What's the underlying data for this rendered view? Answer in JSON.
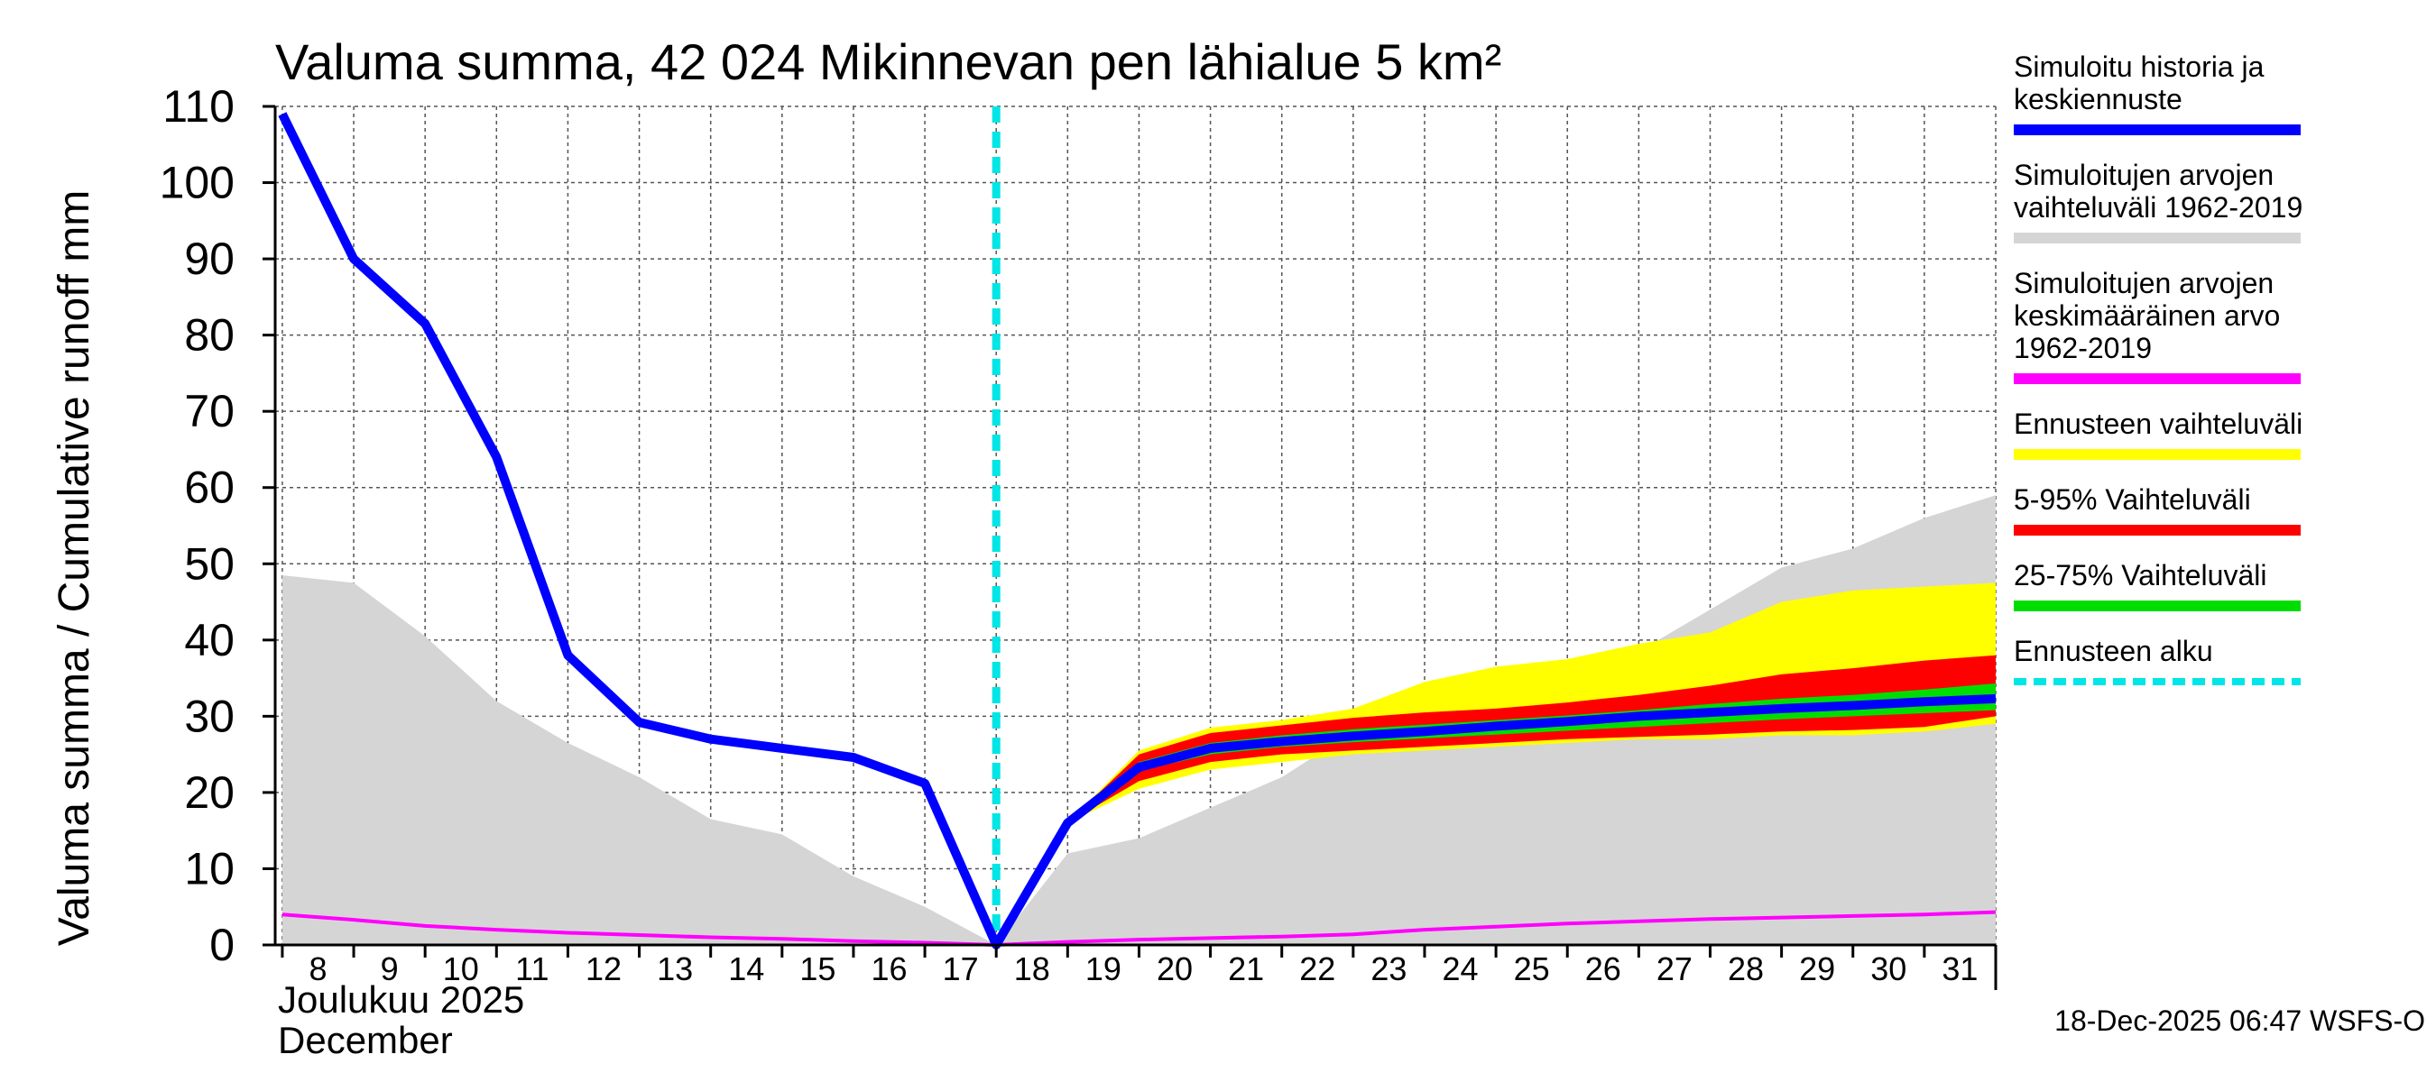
{
  "chart_data": {
    "type": "area",
    "title": "Valuma summa, 42 024 Mikinnevan pen lähialue 5 km²",
    "ylabel": "Valuma summa / Cumulative runoff    mm",
    "xlabel_line1": "Joulukuu  2025",
    "xlabel_line2": "December",
    "ylim": [
      0,
      110
    ],
    "xlim": [
      7.9,
      32
    ],
    "yticks": [
      0,
      10,
      20,
      30,
      40,
      50,
      60,
      70,
      80,
      90,
      100,
      110
    ],
    "ytick_labels": [
      "0",
      "10",
      "20",
      "30",
      "40",
      "50",
      "60",
      "70",
      "80",
      "90",
      "100",
      "110"
    ],
    "x_grid_days": [
      8,
      9,
      10,
      11,
      12,
      13,
      14,
      15,
      16,
      17,
      18,
      19,
      20,
      21,
      22,
      23,
      24,
      25,
      26,
      27,
      28,
      29,
      30,
      31,
      32
    ],
    "xtick_labels": [
      "8",
      "9",
      "10",
      "11",
      "12",
      "13",
      "14",
      "15",
      "16",
      "17",
      "18",
      "19",
      "20",
      "21",
      "22",
      "23",
      "24",
      "25",
      "26",
      "27",
      "28",
      "29",
      "30",
      "31"
    ],
    "forecast_start": 18,
    "series": [
      {
        "name": "Simuloitujen arvojen vaihteluväli 1962-2019",
        "color": "#d5d5d5",
        "x": [
          8,
          9,
          10,
          11,
          12,
          13,
          14,
          15,
          16,
          17,
          18,
          19,
          20,
          21,
          22,
          23,
          24,
          25,
          26,
          27,
          28,
          29,
          30,
          31,
          32
        ],
        "upper": [
          48.5,
          47.5,
          40.5,
          32,
          26.5,
          22,
          16.5,
          14.5,
          9,
          5,
          0,
          12,
          14,
          18,
          22,
          28,
          33.5,
          36,
          37,
          38.5,
          44,
          49.5,
          52,
          56,
          59
        ],
        "lower": [
          0,
          0,
          0,
          0,
          0,
          0,
          0,
          0,
          0,
          0,
          0,
          0,
          0,
          0,
          0,
          0,
          0,
          0,
          0,
          0,
          0,
          0,
          0,
          0,
          0
        ]
      },
      {
        "name": "Ennusteen vaihteluväli",
        "color": "#ffff00",
        "x": [
          19,
          20,
          21,
          22,
          23,
          24,
          25,
          26,
          27,
          28,
          29,
          30,
          31,
          32
        ],
        "upper": [
          16,
          25.5,
          28.5,
          29.5,
          31,
          34.5,
          36.5,
          37.5,
          39.5,
          41,
          45,
          46.5,
          47,
          47.5
        ],
        "lower": [
          16,
          20.5,
          23,
          24,
          25,
          25.5,
          26,
          26.5,
          27,
          27,
          27.5,
          27.5,
          28,
          29
        ]
      },
      {
        "name": "5-95% Vaihteluväli",
        "color": "#ff0000",
        "x": [
          19,
          20,
          21,
          22,
          23,
          24,
          25,
          26,
          27,
          28,
          29,
          30,
          31,
          32
        ],
        "upper": [
          16,
          25,
          27.8,
          28.8,
          29.8,
          30.5,
          31,
          31.8,
          32.8,
          34,
          35.5,
          36.3,
          37.3,
          38
        ],
        "lower": [
          16,
          21.5,
          24,
          25,
          25.5,
          26,
          26.5,
          27,
          27.3,
          27.6,
          28,
          28.2,
          28.6,
          30
        ]
      },
      {
        "name": "25-75% Vaihteluväli",
        "color": "#00dd00",
        "x": [
          19,
          20,
          21,
          22,
          23,
          24,
          25,
          26,
          27,
          28,
          29,
          30,
          31,
          32
        ],
        "upper": [
          16,
          24,
          26.5,
          27.5,
          28.3,
          28.9,
          29.5,
          30.1,
          30.8,
          31.6,
          32.3,
          32.8,
          33.5,
          34.3
        ],
        "lower": [
          16,
          22.8,
          25,
          26,
          26.6,
          27.1,
          27.6,
          28.1,
          28.6,
          29.1,
          29.6,
          30,
          30.4,
          30.8
        ]
      },
      {
        "name": "Simuloitujen arvojen keskimääräinen arvo 1962-2019",
        "color": "#ff00ff",
        "x": [
          8,
          9,
          10,
          11,
          12,
          13,
          14,
          15,
          16,
          17,
          18,
          19,
          20,
          21,
          22,
          23,
          24,
          25,
          26,
          27,
          28,
          29,
          30,
          31,
          32
        ],
        "values": [
          4,
          3.3,
          2.5,
          2,
          1.6,
          1.3,
          1,
          0.8,
          0.5,
          0.3,
          0,
          0.4,
          0.7,
          0.9,
          1.1,
          1.4,
          2,
          2.4,
          2.8,
          3.1,
          3.4,
          3.6,
          3.8,
          4,
          4.3
        ]
      },
      {
        "name": "Simuloitu historia ja keskiennuste",
        "color": "#0000ff",
        "x": [
          8,
          9,
          10,
          11,
          12,
          13,
          14,
          15,
          16,
          17,
          18,
          19,
          20,
          21,
          22,
          23,
          24,
          25,
          26,
          27,
          28,
          29,
          30,
          31,
          32
        ],
        "values": [
          109,
          90,
          81.5,
          64,
          38,
          29.2,
          27,
          25.8,
          24.6,
          21.2,
          0,
          16,
          23.3,
          25.8,
          26.7,
          27.4,
          28,
          28.7,
          29.3,
          30,
          30.5,
          31,
          31.4,
          31.9,
          32.3
        ]
      }
    ],
    "legend": [
      {
        "lines": [
          "Simuloitu historia ja",
          "keskiennuste"
        ],
        "color": "#0000ff",
        "style": "solid"
      },
      {
        "lines": [
          "Simuloitujen arvojen",
          "vaihteluväli 1962-2019"
        ],
        "color": "#d5d5d5",
        "style": "solid"
      },
      {
        "lines": [
          "Simuloitujen arvojen",
          "keskimääräinen arvo",
          "   1962-2019"
        ],
        "color": "#ff00ff",
        "style": "solid"
      },
      {
        "lines": [
          "Ennusteen vaihteluväli"
        ],
        "color": "#ffff00",
        "style": "solid"
      },
      {
        "lines": [
          "5-95% Vaihteluväli"
        ],
        "color": "#ff0000",
        "style": "solid"
      },
      {
        "lines": [
          "25-75% Vaihteluväli"
        ],
        "color": "#00dd00",
        "style": "solid"
      },
      {
        "lines": [
          "Ennusteen alku"
        ],
        "color": "#00e5e5",
        "style": "dashed"
      }
    ],
    "legend_placement": "right",
    "grid": true,
    "footer": "18-Dec-2025 06:47 WSFS-O"
  }
}
